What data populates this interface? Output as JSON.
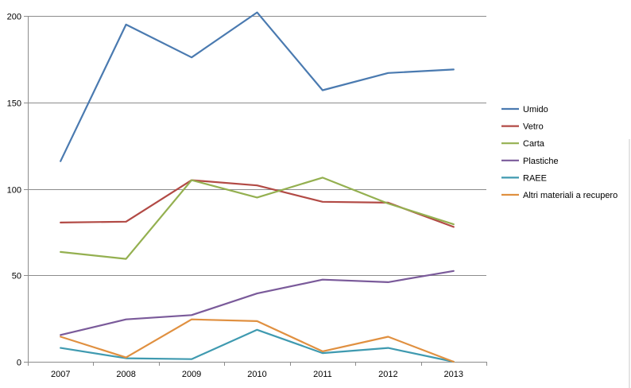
{
  "chart_data": {
    "type": "line",
    "title": "",
    "xlabel": "",
    "ylabel": "",
    "categories": [
      "2007",
      "2008",
      "2009",
      "2010",
      "2011",
      "2012",
      "2013"
    ],
    "ylim": [
      0,
      200
    ],
    "yticks": [
      0,
      50,
      100,
      150,
      200
    ],
    "grid": true,
    "legend_position": "right",
    "series": [
      {
        "name": "Umido",
        "color": "#4a7ab0",
        "values": [
          116,
          195,
          176,
          202,
          157,
          167,
          169
        ]
      },
      {
        "name": "Vetro",
        "color": "#b24a45",
        "values": [
          80.5,
          81,
          105,
          102,
          92.5,
          92,
          78
        ]
      },
      {
        "name": "Carta",
        "color": "#94b050",
        "values": [
          63.5,
          59.5,
          105,
          95,
          106.5,
          91.5,
          79.5
        ]
      },
      {
        "name": "Plastiche",
        "color": "#7a5a9a",
        "values": [
          15.5,
          24.5,
          27,
          39.5,
          47.5,
          46,
          52.5
        ]
      },
      {
        "name": "RAEE",
        "color": "#3f9ab0",
        "values": [
          8,
          2,
          1.5,
          18.5,
          5,
          8,
          0
        ]
      },
      {
        "name": "Altri materiali a recupero",
        "color": "#e09040",
        "values": [
          14.5,
          2.5,
          24.5,
          23.5,
          6,
          14.5,
          0
        ]
      }
    ]
  }
}
